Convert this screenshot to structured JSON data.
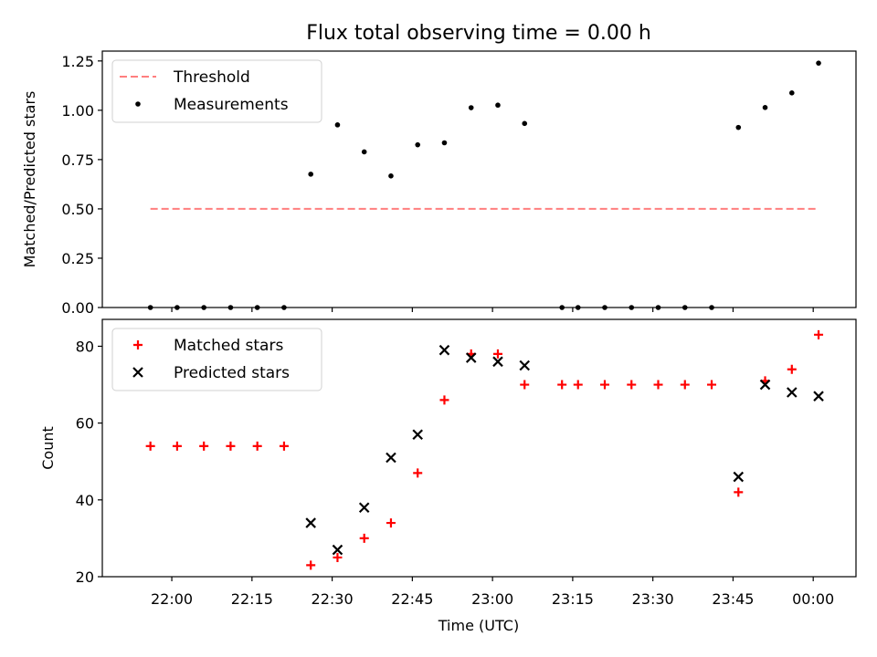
{
  "chart_data": {
    "type": "scatter",
    "title": "Flux total observing time = 0.00 h",
    "xlabel": "Time (UTC)",
    "x_ticks": [
      "22:00",
      "22:15",
      "22:30",
      "22:45",
      "23:00",
      "23:15",
      "23:30",
      "23:45",
      "00:00"
    ],
    "times": [
      "21:56",
      "22:01",
      "22:06",
      "22:11",
      "22:16",
      "22:21",
      "22:26",
      "22:31",
      "22:36",
      "22:41",
      "22:46",
      "22:51",
      "22:56",
      "23:01",
      "23:06",
      "23:13",
      "23:16",
      "23:21",
      "23:26",
      "23:31",
      "23:36",
      "23:41",
      "23:46",
      "23:51",
      "23:56",
      "00:01"
    ],
    "panels": [
      {
        "ylabel": "Matched/Predicted stars",
        "ylim": [
          0,
          1.3
        ],
        "y_ticks": [
          "0.00",
          "0.25",
          "0.50",
          "0.75",
          "1.00",
          "1.25"
        ],
        "legend": "top-left",
        "threshold": {
          "name": "Threshold",
          "value": 0.5,
          "x_range": [
            "21:56",
            "00:01"
          ],
          "color": "#ff7f7f"
        },
        "series": [
          {
            "name": "Measurements",
            "marker": "dot",
            "color": "#000000",
            "values": [
              0,
              0,
              0,
              0,
              0,
              0,
              0.676,
              0.926,
              0.789,
              0.667,
              0.825,
              0.835,
              1.013,
              1.026,
              0.933,
              0,
              0,
              0,
              0,
              0,
              0,
              0,
              0.913,
              1.014,
              1.088,
              1.239
            ]
          }
        ]
      },
      {
        "ylabel": "Count",
        "ylim": [
          20,
          87
        ],
        "y_ticks": [
          "20",
          "40",
          "60",
          "80"
        ],
        "legend": "top-left",
        "series": [
          {
            "name": "Matched stars",
            "marker": "plus",
            "color": "#ff0000",
            "values": [
              54,
              54,
              54,
              54,
              54,
              54,
              23,
              25,
              30,
              34,
              47,
              66,
              78,
              78,
              70,
              70,
              70,
              70,
              70,
              70,
              70,
              70,
              42,
              71,
              74,
              83
            ]
          },
          {
            "name": "Predicted stars",
            "marker": "x",
            "color": "#000000",
            "values": [
              null,
              null,
              null,
              null,
              null,
              null,
              34,
              27,
              38,
              51,
              57,
              79,
              77,
              76,
              75,
              null,
              null,
              null,
              null,
              null,
              null,
              null,
              46,
              70,
              68,
              67
            ]
          }
        ]
      }
    ]
  }
}
